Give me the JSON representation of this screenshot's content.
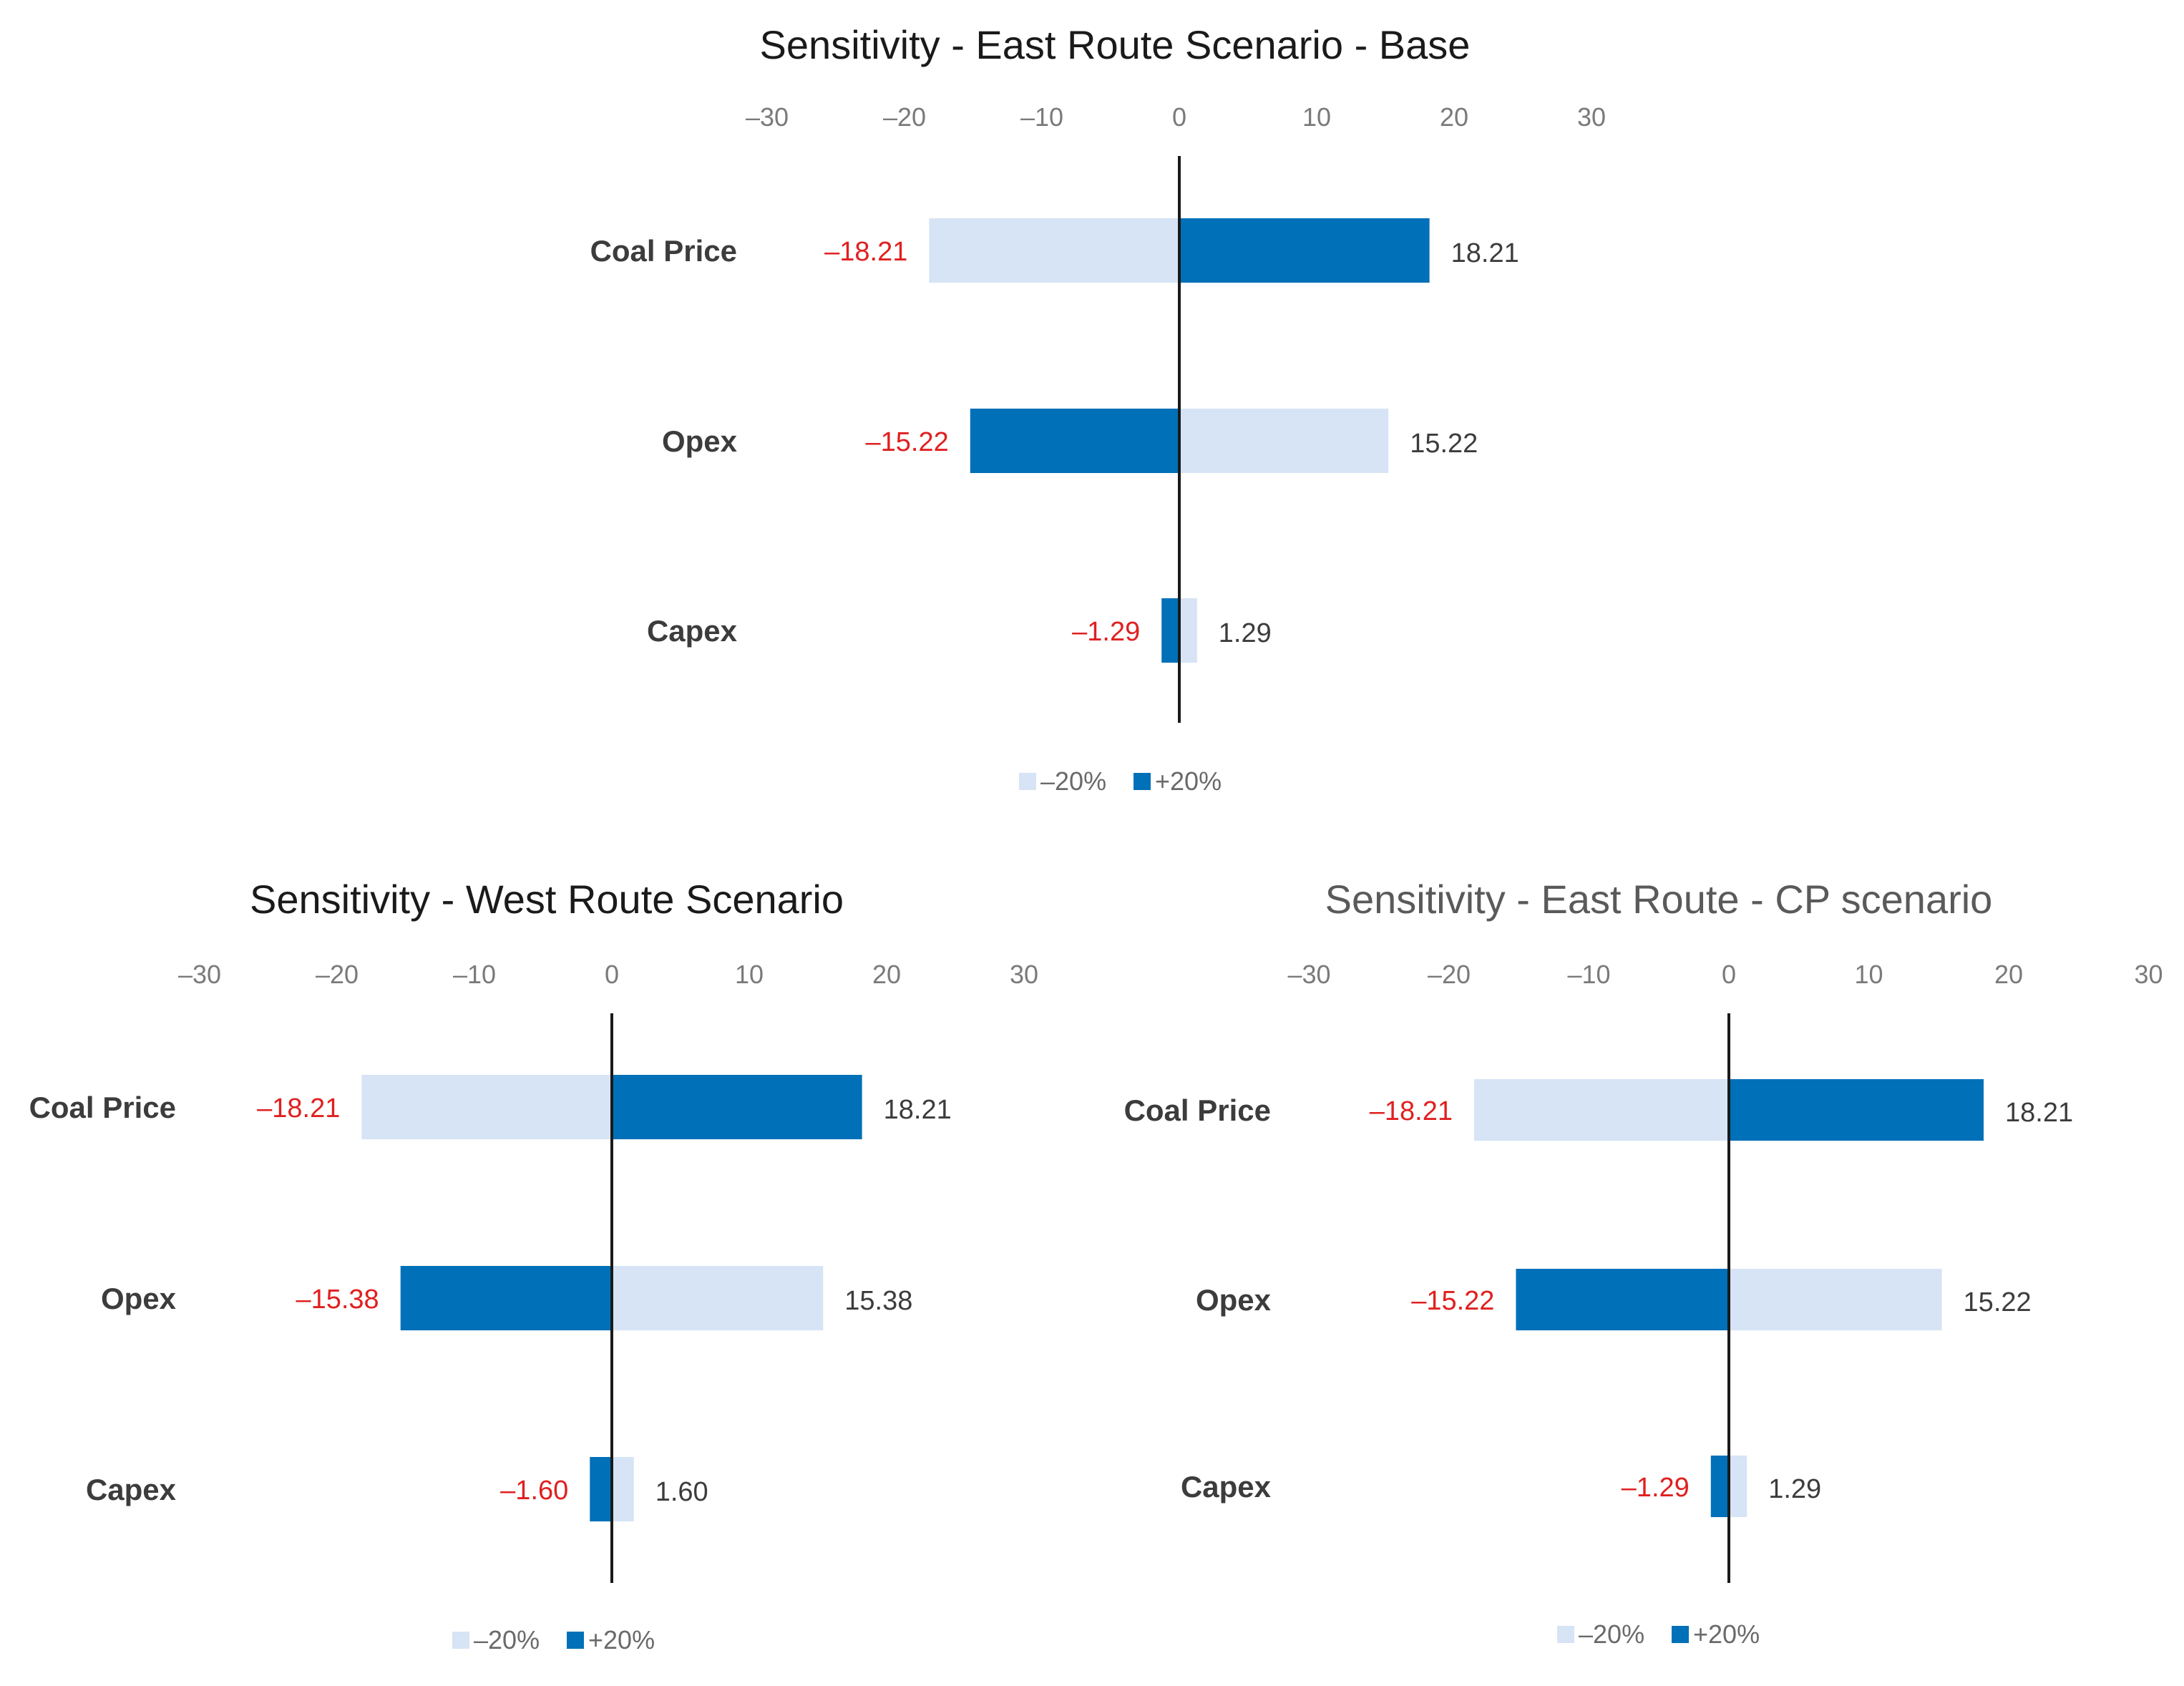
{
  "colors": {
    "minus20": "#d6e4f5",
    "plus20": "#0070b8",
    "axis": "#1a1a1a",
    "neg_label": "#e02020"
  },
  "chart_data": [
    {
      "type": "bar",
      "orientation": "horizontal",
      "title": "Sensitivity - East Route Scenario - Base",
      "categories": [
        "Coal Price",
        "Opex",
        "Capex"
      ],
      "series": [
        {
          "name": "–20%",
          "values": [
            -18.21,
            15.22,
            1.29
          ]
        },
        {
          "name": "+20%",
          "values": [
            18.21,
            -15.22,
            -1.29
          ]
        }
      ],
      "neg_labels": [
        "–18.21",
        "–15.22",
        "–1.29"
      ],
      "pos_labels": [
        "18.21",
        "15.22",
        "1.29"
      ],
      "xticks": [
        "–30",
        "–20",
        "–10",
        "0",
        "10",
        "20",
        "30"
      ],
      "xlim": [
        -30,
        30
      ],
      "axis_position": "top",
      "legend_position": "bottom",
      "grid": false
    },
    {
      "type": "bar",
      "orientation": "horizontal",
      "title": "Sensitivity - West Route Scenario",
      "categories": [
        "Coal Price",
        "Opex",
        "Capex"
      ],
      "series": [
        {
          "name": "–20%",
          "values": [
            -18.21,
            15.38,
            1.6
          ]
        },
        {
          "name": "+20%",
          "values": [
            18.21,
            -15.38,
            -1.6
          ]
        }
      ],
      "neg_labels": [
        "–18.21",
        "–15.38",
        "–1.60"
      ],
      "pos_labels": [
        "18.21",
        "15.38",
        "1.60"
      ],
      "xticks": [
        "–30",
        "–20",
        "–10",
        "0",
        "10",
        "20",
        "30"
      ],
      "xlim": [
        -30,
        30
      ],
      "axis_position": "top",
      "legend_position": "bottom",
      "grid": false
    },
    {
      "type": "bar",
      "orientation": "horizontal",
      "title": "Sensitivity - East Route - CP scenario",
      "categories": [
        "Coal Price",
        "Opex",
        "Capex"
      ],
      "series": [
        {
          "name": "–20%",
          "values": [
            -18.21,
            15.22,
            1.29
          ]
        },
        {
          "name": "+20%",
          "values": [
            18.21,
            -15.22,
            -1.29
          ]
        }
      ],
      "neg_labels": [
        "–18.21",
        "–15.22",
        "–1.29"
      ],
      "pos_labels": [
        "18.21",
        "15.22",
        "1.29"
      ],
      "xticks": [
        "–30",
        "–20",
        "–10",
        "0",
        "10",
        "20",
        "30"
      ],
      "xlim": [
        -30,
        30
      ],
      "axis_position": "top",
      "legend_position": "bottom",
      "grid": false
    }
  ]
}
